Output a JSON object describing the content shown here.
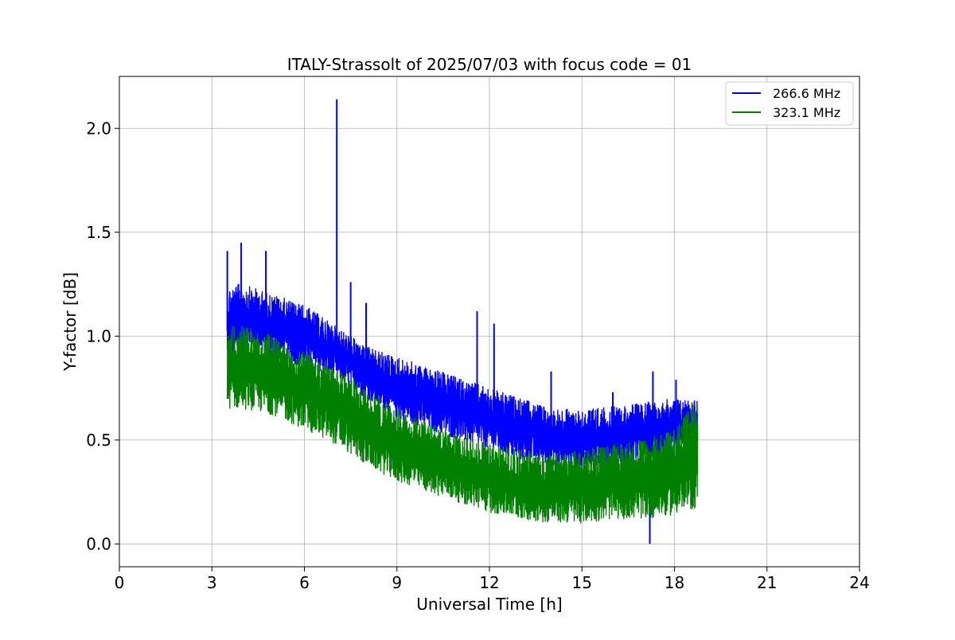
{
  "chart_data": {
    "type": "line",
    "title": "ITALY-Strassolt of 2025/07/03 with focus code = 01",
    "xlabel": "Universal Time [h]",
    "ylabel": "Y-factor [dB]",
    "xlim": [
      0,
      24
    ],
    "ylim": [
      -0.11,
      2.25
    ],
    "xticks": [
      0,
      3,
      6,
      9,
      12,
      15,
      18,
      21,
      24
    ],
    "xtick_labels": [
      "0",
      "3",
      "6",
      "9",
      "12",
      "15",
      "18",
      "21",
      "24"
    ],
    "yticks": [
      0.0,
      0.5,
      1.0,
      1.5,
      2.0
    ],
    "ytick_labels": [
      "0.0",
      "0.5",
      "1.0",
      "1.5",
      "2.0"
    ],
    "grid": true,
    "legend_position": "upper right",
    "series": [
      {
        "name": "266.6 MHz",
        "color": "#0000ff",
        "x": [
          3.5,
          4.0,
          5.0,
          6.0,
          7.0,
          8.0,
          9.0,
          10.0,
          11.0,
          12.0,
          13.0,
          14.0,
          15.0,
          16.0,
          17.0,
          18.0,
          18.75
        ],
        "low": [
          0.8,
          0.95,
          0.9,
          0.85,
          0.8,
          0.7,
          0.6,
          0.55,
          0.5,
          0.45,
          0.4,
          0.38,
          0.36,
          0.38,
          0.4,
          0.42,
          0.45
        ],
        "high": [
          1.25,
          1.25,
          1.2,
          1.15,
          1.05,
          0.95,
          0.9,
          0.85,
          0.8,
          0.75,
          0.7,
          0.65,
          0.65,
          0.66,
          0.68,
          0.7,
          0.7
        ],
        "spikes": [
          {
            "x": 3.5,
            "y": 1.41
          },
          {
            "x": 3.95,
            "y": 1.45
          },
          {
            "x": 4.75,
            "y": 1.41
          },
          {
            "x": 7.05,
            "y": 2.14
          },
          {
            "x": 7.5,
            "y": 1.26
          },
          {
            "x": 8.0,
            "y": 1.16
          },
          {
            "x": 11.6,
            "y": 1.12
          },
          {
            "x": 12.15,
            "y": 1.06
          },
          {
            "x": 14.0,
            "y": 0.83
          },
          {
            "x": 16.0,
            "y": 0.73
          },
          {
            "x": 17.2,
            "y": 0.0
          },
          {
            "x": 17.3,
            "y": 0.83
          },
          {
            "x": 18.05,
            "y": 0.79
          }
        ]
      },
      {
        "name": "323.1 MHz",
        "color": "#008000",
        "x": [
          3.5,
          4.0,
          5.0,
          6.0,
          7.0,
          8.0,
          9.0,
          10.0,
          11.0,
          12.0,
          13.0,
          14.0,
          15.0,
          16.0,
          17.0,
          18.0,
          18.75
        ],
        "low": [
          0.65,
          0.65,
          0.62,
          0.55,
          0.48,
          0.38,
          0.3,
          0.25,
          0.2,
          0.15,
          0.12,
          0.1,
          0.1,
          0.12,
          0.12,
          0.14,
          0.17
        ],
        "high": [
          1.05,
          1.05,
          1.0,
          0.92,
          0.85,
          0.75,
          0.65,
          0.58,
          0.52,
          0.48,
          0.45,
          0.43,
          0.45,
          0.48,
          0.5,
          0.55,
          0.7
        ]
      }
    ]
  }
}
